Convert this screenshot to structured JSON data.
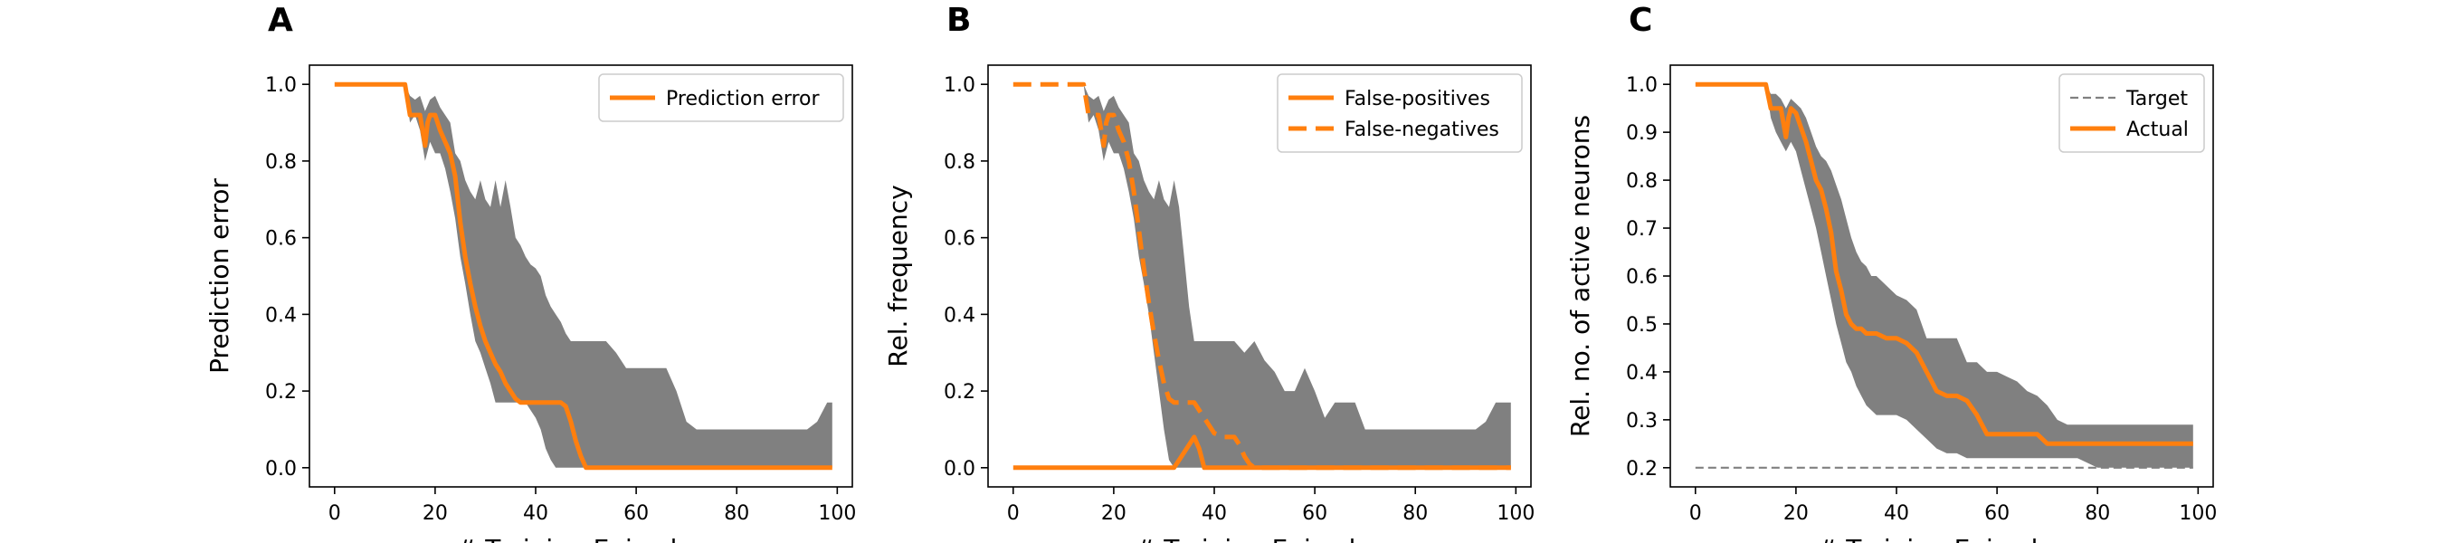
{
  "colors": {
    "actual": "#ff7f0e",
    "band": "#808080",
    "target": "#808080",
    "axes": "#000000",
    "legend_border": "#cccccc"
  },
  "chart_data": [
    {
      "id": "A",
      "type": "line",
      "panel_label": "A",
      "xlabel": "# Training Episodes",
      "ylabel": "Prediction error",
      "xlim": [
        -5,
        103
      ],
      "ylim": [
        -0.05,
        1.05
      ],
      "xticks": [
        0,
        20,
        40,
        60,
        80,
        100
      ],
      "yticks": [
        0.0,
        0.2,
        0.4,
        0.6,
        0.8,
        1.0
      ],
      "ytick_format": 1,
      "grid": false,
      "legend_position": "top-right",
      "band": {
        "x": [
          0,
          14,
          15,
          16,
          17,
          18,
          19,
          20,
          21,
          22,
          23,
          24,
          25,
          26,
          27,
          28,
          29,
          30,
          31,
          32,
          33,
          34,
          35,
          36,
          37,
          38,
          39,
          40,
          41,
          42,
          43,
          44,
          45,
          46,
          47,
          48,
          49,
          50,
          52,
          54,
          56,
          58,
          60,
          62,
          64,
          66,
          68,
          70,
          72,
          74,
          76,
          78,
          80,
          82,
          84,
          86,
          88,
          90,
          92,
          94,
          96,
          98,
          99
        ],
        "upper": [
          1.0,
          1.0,
          0.97,
          0.96,
          0.97,
          0.93,
          0.96,
          0.97,
          0.94,
          0.92,
          0.9,
          0.82,
          0.8,
          0.75,
          0.72,
          0.7,
          0.75,
          0.7,
          0.68,
          0.75,
          0.68,
          0.75,
          0.68,
          0.6,
          0.58,
          0.55,
          0.53,
          0.52,
          0.5,
          0.45,
          0.42,
          0.4,
          0.38,
          0.35,
          0.33,
          0.33,
          0.33,
          0.33,
          0.33,
          0.33,
          0.3,
          0.26,
          0.26,
          0.26,
          0.26,
          0.26,
          0.2,
          0.12,
          0.1,
          0.1,
          0.1,
          0.1,
          0.1,
          0.1,
          0.1,
          0.1,
          0.1,
          0.1,
          0.1,
          0.1,
          0.12,
          0.17,
          0.17
        ],
        "lower": [
          1.0,
          1.0,
          0.9,
          0.92,
          0.88,
          0.8,
          0.85,
          0.82,
          0.82,
          0.78,
          0.72,
          0.65,
          0.55,
          0.48,
          0.4,
          0.33,
          0.3,
          0.26,
          0.22,
          0.17,
          0.17,
          0.17,
          0.17,
          0.17,
          0.17,
          0.17,
          0.15,
          0.13,
          0.1,
          0.05,
          0.02,
          0.0,
          0.0,
          0.0,
          0.0,
          0.0,
          0.0,
          0.0,
          0.0,
          0.0,
          0.0,
          0.0,
          0.0,
          0.0,
          0.0,
          0.0,
          0.0,
          0.0,
          0.0,
          0.0,
          0.0,
          0.0,
          0.0,
          0.0,
          0.0,
          0.0,
          0.0,
          0.0,
          0.0,
          0.0,
          0.0,
          0.0,
          0.0
        ]
      },
      "series": [
        {
          "name": "Prediction error",
          "style": "solid",
          "x": [
            0,
            14,
            15,
            16,
            17,
            18,
            18.5,
            19,
            20,
            21,
            22,
            23,
            24,
            25,
            26,
            27,
            28,
            29,
            30,
            31,
            32,
            33,
            34,
            35,
            36,
            37,
            38,
            39,
            40,
            41,
            42,
            43,
            44,
            45,
            46,
            47,
            48,
            49,
            50,
            52,
            60,
            70,
            80,
            90,
            99
          ],
          "y": [
            1.0,
            1.0,
            0.92,
            0.92,
            0.92,
            0.84,
            0.9,
            0.92,
            0.92,
            0.88,
            0.85,
            0.82,
            0.76,
            0.64,
            0.55,
            0.48,
            0.42,
            0.37,
            0.33,
            0.3,
            0.27,
            0.25,
            0.22,
            0.2,
            0.18,
            0.17,
            0.17,
            0.17,
            0.17,
            0.17,
            0.17,
            0.17,
            0.17,
            0.17,
            0.16,
            0.12,
            0.07,
            0.03,
            0.0,
            0.0,
            0.0,
            0.0,
            0.0,
            0.0,
            0.0
          ]
        }
      ]
    },
    {
      "id": "B",
      "type": "line",
      "panel_label": "B",
      "xlabel": "# Training Episodes",
      "ylabel": "Rel. frequency",
      "xlim": [
        -5,
        103
      ],
      "ylim": [
        -0.05,
        1.05
      ],
      "xticks": [
        0,
        20,
        40,
        60,
        80,
        100
      ],
      "yticks": [
        0.0,
        0.2,
        0.4,
        0.6,
        0.8,
        1.0
      ],
      "ytick_format": 1,
      "grid": false,
      "legend_position": "top-right",
      "band": {
        "x": [
          0,
          14,
          15,
          16,
          17,
          18,
          19,
          20,
          21,
          22,
          23,
          24,
          25,
          26,
          27,
          28,
          29,
          30,
          31,
          32,
          33,
          34,
          35,
          36,
          38,
          40,
          42,
          44,
          46,
          48,
          50,
          52,
          54,
          56,
          58,
          60,
          62,
          64,
          66,
          68,
          70,
          72,
          74,
          76,
          78,
          80,
          82,
          84,
          86,
          88,
          90,
          92,
          94,
          96,
          98,
          99
        ],
        "upper": [
          1.0,
          1.0,
          0.97,
          0.96,
          0.97,
          0.93,
          0.96,
          0.97,
          0.94,
          0.92,
          0.9,
          0.82,
          0.8,
          0.75,
          0.72,
          0.7,
          0.75,
          0.7,
          0.68,
          0.75,
          0.68,
          0.55,
          0.42,
          0.33,
          0.33,
          0.33,
          0.33,
          0.33,
          0.3,
          0.33,
          0.28,
          0.25,
          0.2,
          0.2,
          0.26,
          0.2,
          0.13,
          0.17,
          0.17,
          0.17,
          0.1,
          0.1,
          0.1,
          0.1,
          0.1,
          0.1,
          0.1,
          0.1,
          0.1,
          0.1,
          0.1,
          0.1,
          0.12,
          0.17,
          0.17,
          0.17
        ],
        "lower": [
          1.0,
          1.0,
          0.9,
          0.92,
          0.88,
          0.8,
          0.85,
          0.82,
          0.82,
          0.78,
          0.72,
          0.65,
          0.55,
          0.48,
          0.4,
          0.3,
          0.2,
          0.1,
          0.02,
          0.0,
          0.0,
          0.0,
          0.0,
          0.0,
          0.0,
          0.0,
          0.0,
          0.0,
          0.0,
          0.0,
          0.0,
          0.0,
          0.0,
          0.0,
          0.0,
          0.0,
          0.0,
          0.0,
          0.0,
          0.0,
          0.0,
          0.0,
          0.0,
          0.0,
          0.0,
          0.0,
          0.0,
          0.0,
          0.0,
          0.0,
          0.0,
          0.0,
          0.0,
          0.0,
          0.0,
          0.0
        ]
      },
      "series": [
        {
          "name": "False-positives",
          "style": "solid",
          "x": [
            0,
            28,
            30,
            32,
            34,
            36,
            37,
            38,
            40,
            50,
            60,
            70,
            80,
            90,
            99
          ],
          "y": [
            0.0,
            0.0,
            0.0,
            0.0,
            0.04,
            0.08,
            0.05,
            0.0,
            0.0,
            0.0,
            0.0,
            0.0,
            0.0,
            0.0,
            0.0
          ]
        },
        {
          "name": "False-negatives",
          "style": "dashed",
          "x": [
            0,
            14,
            15,
            16,
            17,
            18,
            18.5,
            19,
            20,
            21,
            22,
            23,
            24,
            25,
            26,
            27,
            28,
            29,
            30,
            31,
            32,
            33,
            34,
            35,
            36,
            38,
            40,
            42,
            44,
            45,
            46,
            47,
            48,
            50,
            60,
            70,
            80,
            90,
            99
          ],
          "y": [
            1.0,
            1.0,
            0.92,
            0.92,
            0.92,
            0.84,
            0.9,
            0.92,
            0.92,
            0.88,
            0.85,
            0.8,
            0.72,
            0.62,
            0.52,
            0.43,
            0.35,
            0.28,
            0.22,
            0.18,
            0.17,
            0.17,
            0.17,
            0.17,
            0.17,
            0.13,
            0.09,
            0.08,
            0.08,
            0.06,
            0.03,
            0.01,
            0.0,
            0.0,
            0.0,
            0.0,
            0.0,
            0.0,
            0.0
          ]
        }
      ]
    },
    {
      "id": "C",
      "type": "line",
      "panel_label": "C",
      "xlabel": "# Training Episodes",
      "ylabel": "Rel. no. of active neurons",
      "xlim": [
        -5,
        103
      ],
      "ylim": [
        0.16,
        1.04
      ],
      "xticks": [
        0,
        20,
        40,
        60,
        80,
        100
      ],
      "yticks": [
        0.2,
        0.3,
        0.4,
        0.5,
        0.6,
        0.7,
        0.8,
        0.9,
        1.0
      ],
      "ytick_format": 1,
      "grid": false,
      "legend_position": "top-right",
      "band": {
        "x": [
          0,
          14,
          15,
          16,
          17,
          18,
          19,
          20,
          21,
          22,
          23,
          24,
          25,
          26,
          27,
          28,
          29,
          30,
          31,
          32,
          33,
          34,
          35,
          36,
          38,
          40,
          42,
          44,
          46,
          48,
          50,
          52,
          54,
          56,
          58,
          60,
          62,
          64,
          66,
          68,
          70,
          72,
          74,
          76,
          78,
          80,
          85,
          90,
          95,
          99
        ],
        "upper": [
          1.0,
          1.0,
          0.98,
          0.98,
          0.97,
          0.95,
          0.97,
          0.96,
          0.95,
          0.93,
          0.9,
          0.87,
          0.85,
          0.84,
          0.82,
          0.79,
          0.76,
          0.72,
          0.68,
          0.65,
          0.63,
          0.62,
          0.6,
          0.6,
          0.58,
          0.56,
          0.55,
          0.53,
          0.47,
          0.47,
          0.47,
          0.47,
          0.42,
          0.42,
          0.4,
          0.4,
          0.39,
          0.38,
          0.36,
          0.35,
          0.33,
          0.3,
          0.29,
          0.29,
          0.29,
          0.29,
          0.29,
          0.29,
          0.29,
          0.29
        ],
        "lower": [
          1.0,
          1.0,
          0.93,
          0.9,
          0.88,
          0.86,
          0.88,
          0.86,
          0.82,
          0.78,
          0.74,
          0.7,
          0.65,
          0.6,
          0.55,
          0.5,
          0.46,
          0.42,
          0.4,
          0.37,
          0.35,
          0.33,
          0.32,
          0.31,
          0.31,
          0.31,
          0.3,
          0.28,
          0.26,
          0.24,
          0.23,
          0.23,
          0.22,
          0.22,
          0.22,
          0.22,
          0.22,
          0.22,
          0.22,
          0.22,
          0.22,
          0.22,
          0.22,
          0.22,
          0.21,
          0.2,
          0.2,
          0.2,
          0.2,
          0.2
        ]
      },
      "series": [
        {
          "name": "Target",
          "style": "thin-dashed",
          "x": [
            0,
            99
          ],
          "y": [
            0.2,
            0.2
          ]
        },
        {
          "name": "Actual",
          "style": "solid",
          "x": [
            0,
            14,
            15,
            16,
            17,
            18,
            18.5,
            19,
            20,
            21,
            22,
            23,
            24,
            25,
            26,
            27,
            28,
            29,
            30,
            31,
            32,
            33,
            34,
            35,
            36,
            38,
            40,
            42,
            44,
            46,
            47,
            48,
            50,
            52,
            54,
            56,
            58,
            60,
            62,
            64,
            66,
            68,
            70,
            80,
            90,
            99
          ],
          "y": [
            1.0,
            1.0,
            0.95,
            0.95,
            0.95,
            0.89,
            0.93,
            0.95,
            0.94,
            0.91,
            0.88,
            0.84,
            0.8,
            0.78,
            0.74,
            0.69,
            0.61,
            0.57,
            0.52,
            0.5,
            0.49,
            0.49,
            0.48,
            0.48,
            0.48,
            0.47,
            0.47,
            0.46,
            0.44,
            0.4,
            0.38,
            0.36,
            0.35,
            0.35,
            0.34,
            0.31,
            0.27,
            0.27,
            0.27,
            0.27,
            0.27,
            0.27,
            0.25,
            0.25,
            0.25,
            0.25
          ]
        }
      ]
    }
  ]
}
